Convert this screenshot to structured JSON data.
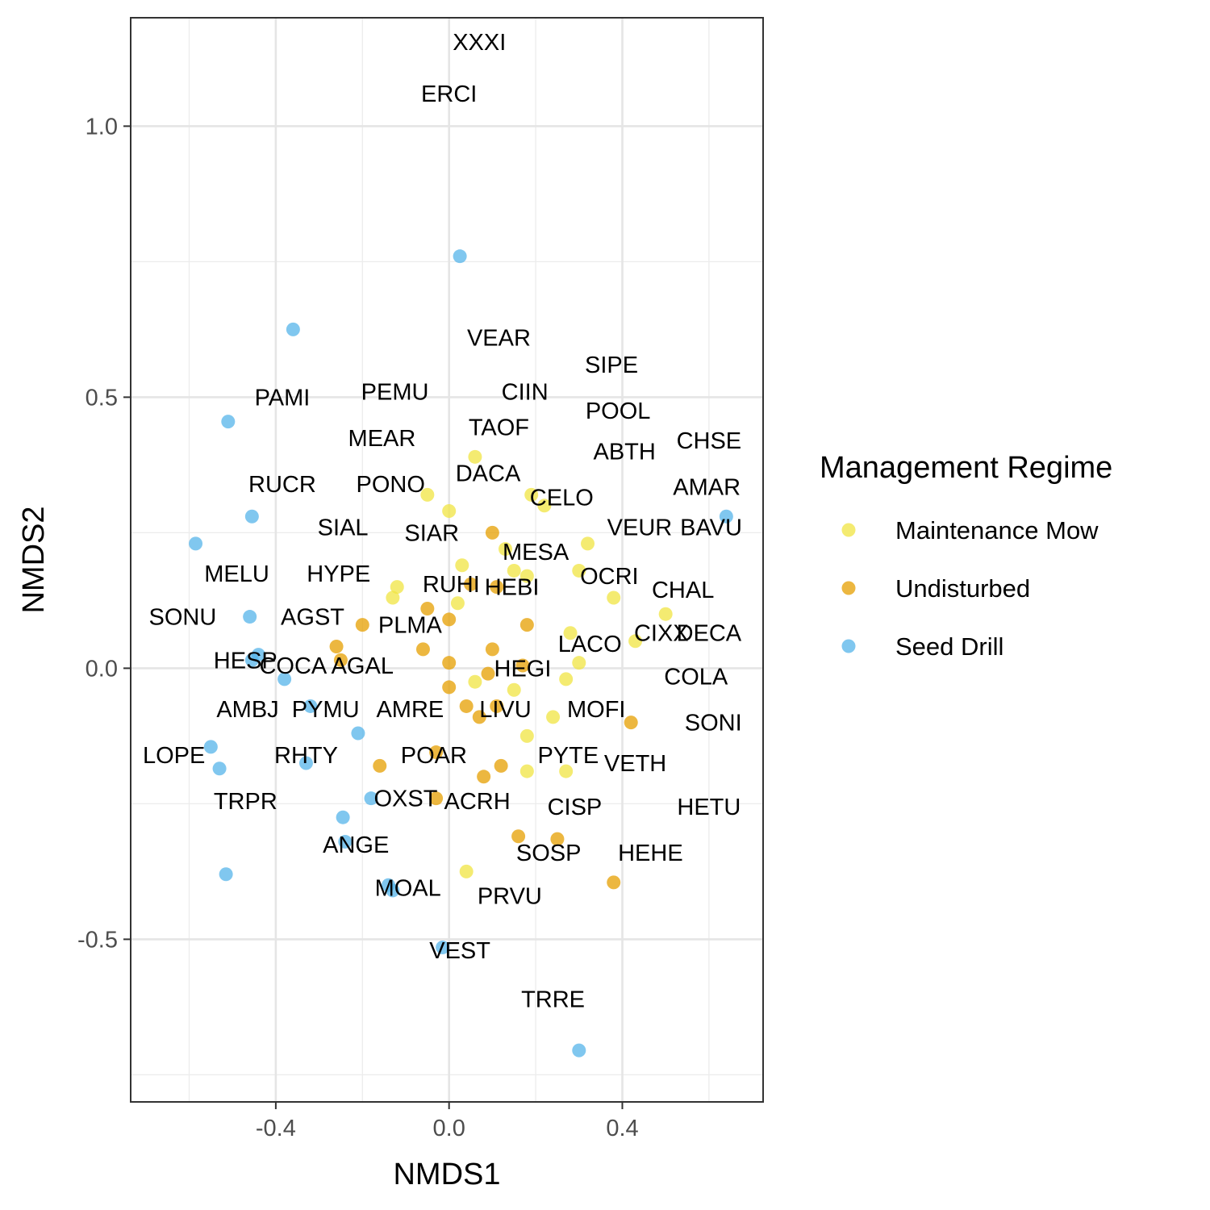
{
  "chart_data": {
    "type": "scatter",
    "xlabel": "NMDS1",
    "ylabel": "NMDS2",
    "xlim": [
      -0.735,
      0.725
    ],
    "ylim": [
      -0.8,
      1.2
    ],
    "x_ticks": [
      -0.4,
      0.0,
      0.4
    ],
    "x_tick_labels": [
      "-0.4",
      "0.0",
      "0.4"
    ],
    "y_ticks": [
      -0.5,
      0.0,
      0.5,
      1.0
    ],
    "y_tick_labels": [
      "-0.5",
      "0.0",
      "0.5",
      "1.0"
    ],
    "grid": true,
    "legend": {
      "title": "Management Regime",
      "position": "right"
    },
    "series": [
      {
        "name": "Maintenance Mow",
        "color": "#F0E442",
        "points": [
          [
            0.06,
            0.39
          ],
          [
            -0.05,
            0.32
          ],
          [
            0.0,
            0.29
          ],
          [
            0.19,
            0.32
          ],
          [
            0.22,
            0.3
          ],
          [
            0.13,
            0.22
          ],
          [
            0.32,
            0.23
          ],
          [
            0.03,
            0.19
          ],
          [
            0.15,
            0.18
          ],
          [
            0.18,
            0.17
          ],
          [
            0.3,
            0.18
          ],
          [
            -0.12,
            0.15
          ],
          [
            -0.13,
            0.13
          ],
          [
            0.02,
            0.12
          ],
          [
            0.38,
            0.13
          ],
          [
            0.5,
            0.1
          ],
          [
            0.28,
            0.065
          ],
          [
            0.43,
            0.05
          ],
          [
            0.3,
            0.01
          ],
          [
            0.06,
            -0.025
          ],
          [
            0.27,
            -0.02
          ],
          [
            0.15,
            -0.04
          ],
          [
            0.24,
            -0.09
          ],
          [
            0.18,
            -0.125
          ],
          [
            0.18,
            -0.19
          ],
          [
            0.27,
            -0.19
          ],
          [
            0.04,
            -0.375
          ]
        ]
      },
      {
        "name": "Undisturbed",
        "color": "#E69F00",
        "points": [
          [
            0.1,
            0.25
          ],
          [
            0.05,
            0.155
          ],
          [
            0.11,
            0.15
          ],
          [
            -0.05,
            0.11
          ],
          [
            0.0,
            0.09
          ],
          [
            0.18,
            0.08
          ],
          [
            -0.2,
            0.08
          ],
          [
            -0.26,
            0.04
          ],
          [
            -0.06,
            0.035
          ],
          [
            0.1,
            0.035
          ],
          [
            0.0,
            0.01
          ],
          [
            -0.25,
            0.015
          ],
          [
            0.17,
            0.005
          ],
          [
            0.09,
            -0.01
          ],
          [
            0.0,
            -0.035
          ],
          [
            0.04,
            -0.07
          ],
          [
            0.11,
            -0.07
          ],
          [
            0.07,
            -0.09
          ],
          [
            0.42,
            -0.1
          ],
          [
            -0.03,
            -0.155
          ],
          [
            -0.16,
            -0.18
          ],
          [
            0.12,
            -0.18
          ],
          [
            0.08,
            -0.2
          ],
          [
            -0.03,
            -0.24
          ],
          [
            0.16,
            -0.31
          ],
          [
            0.25,
            -0.315
          ],
          [
            0.38,
            -0.395
          ]
        ]
      },
      {
        "name": "Seed Drill",
        "color": "#56B4E9",
        "points": [
          [
            0.025,
            0.76
          ],
          [
            -0.36,
            0.625
          ],
          [
            -0.51,
            0.455
          ],
          [
            -0.455,
            0.28
          ],
          [
            0.64,
            0.28
          ],
          [
            -0.585,
            0.23
          ],
          [
            -0.46,
            0.095
          ],
          [
            -0.44,
            0.025
          ],
          [
            -0.455,
            0.015
          ],
          [
            -0.38,
            -0.02
          ],
          [
            -0.32,
            -0.07
          ],
          [
            -0.21,
            -0.12
          ],
          [
            -0.55,
            -0.145
          ],
          [
            -0.53,
            -0.185
          ],
          [
            -0.33,
            -0.175
          ],
          [
            -0.18,
            -0.24
          ],
          [
            -0.245,
            -0.275
          ],
          [
            -0.24,
            -0.32
          ],
          [
            -0.515,
            -0.38
          ],
          [
            -0.14,
            -0.4
          ],
          [
            -0.13,
            -0.41
          ],
          [
            -0.015,
            -0.515
          ],
          [
            0.3,
            -0.705
          ]
        ]
      }
    ],
    "species_labels": [
      {
        "label": "XXXI",
        "x": 0.07,
        "y": 1.155
      },
      {
        "label": "ERCI",
        "x": 0.0,
        "y": 1.06
      },
      {
        "label": "VEAR",
        "x": 0.115,
        "y": 0.61
      },
      {
        "label": "SIPE",
        "x": 0.375,
        "y": 0.56
      },
      {
        "label": "CIIN",
        "x": 0.175,
        "y": 0.51
      },
      {
        "label": "PAMI",
        "x": -0.385,
        "y": 0.5
      },
      {
        "label": "PEMU",
        "x": -0.125,
        "y": 0.51
      },
      {
        "label": "POOL",
        "x": 0.39,
        "y": 0.475
      },
      {
        "label": "TAOF",
        "x": 0.115,
        "y": 0.445
      },
      {
        "label": "MEAR",
        "x": -0.155,
        "y": 0.425
      },
      {
        "label": "CHSE",
        "x": 0.6,
        "y": 0.42
      },
      {
        "label": "ABTH",
        "x": 0.405,
        "y": 0.4
      },
      {
        "label": "DACA",
        "x": 0.09,
        "y": 0.36
      },
      {
        "label": "RUCR",
        "x": -0.385,
        "y": 0.34
      },
      {
        "label": "PONO",
        "x": -0.135,
        "y": 0.34
      },
      {
        "label": "AMAR",
        "x": 0.595,
        "y": 0.335
      },
      {
        "label": "CELO",
        "x": 0.26,
        "y": 0.315
      },
      {
        "label": "SIAL",
        "x": -0.245,
        "y": 0.26
      },
      {
        "label": "SIAR",
        "x": -0.04,
        "y": 0.25
      },
      {
        "label": "VEUR",
        "x": 0.44,
        "y": 0.26
      },
      {
        "label": "BAVU",
        "x": 0.605,
        "y": 0.26
      },
      {
        "label": "MESA",
        "x": 0.2,
        "y": 0.215
      },
      {
        "label": "MELU",
        "x": -0.49,
        "y": 0.175
      },
      {
        "label": "HYPE",
        "x": -0.255,
        "y": 0.175
      },
      {
        "label": "OCRI",
        "x": 0.37,
        "y": 0.17
      },
      {
        "label": "RUHI",
        "x": 0.005,
        "y": 0.155
      },
      {
        "label": "HEBI",
        "x": 0.145,
        "y": 0.15
      },
      {
        "label": "CHAL",
        "x": 0.54,
        "y": 0.145
      },
      {
        "label": "SONU",
        "x": -0.615,
        "y": 0.095
      },
      {
        "label": "AGST",
        "x": -0.315,
        "y": 0.095
      },
      {
        "label": "PLMA",
        "x": -0.09,
        "y": 0.08
      },
      {
        "label": "CIXX",
        "x": 0.49,
        "y": 0.065
      },
      {
        "label": "DECA",
        "x": 0.6,
        "y": 0.065
      },
      {
        "label": "LACO",
        "x": 0.325,
        "y": 0.045
      },
      {
        "label": "HESP",
        "x": -0.47,
        "y": 0.015
      },
      {
        "label": "COCA",
        "x": -0.36,
        "y": 0.005
      },
      {
        "label": "AGAL",
        "x": -0.2,
        "y": 0.005
      },
      {
        "label": "HEGI",
        "x": 0.17,
        "y": 0.0
      },
      {
        "label": "COLA",
        "x": 0.57,
        "y": -0.015
      },
      {
        "label": "AMBJ",
        "x": -0.465,
        "y": -0.075
      },
      {
        "label": "PYMU",
        "x": -0.285,
        "y": -0.075
      },
      {
        "label": "AMRE",
        "x": -0.09,
        "y": -0.075
      },
      {
        "label": "LIVU",
        "x": 0.13,
        "y": -0.075
      },
      {
        "label": "MOFI",
        "x": 0.34,
        "y": -0.075
      },
      {
        "label": "SONI",
        "x": 0.61,
        "y": -0.1
      },
      {
        "label": "LOPE",
        "x": -0.635,
        "y": -0.16
      },
      {
        "label": "RHTY",
        "x": -0.33,
        "y": -0.16
      },
      {
        "label": "POAR",
        "x": -0.035,
        "y": -0.16
      },
      {
        "label": "PYTE",
        "x": 0.275,
        "y": -0.16
      },
      {
        "label": "VETH",
        "x": 0.43,
        "y": -0.175
      },
      {
        "label": "TRPR",
        "x": -0.47,
        "y": -0.245
      },
      {
        "label": "OXST",
        "x": -0.1,
        "y": -0.24
      },
      {
        "label": "ACRH",
        "x": 0.065,
        "y": -0.245
      },
      {
        "label": "CISP",
        "x": 0.29,
        "y": -0.255
      },
      {
        "label": "HETU",
        "x": 0.6,
        "y": -0.255
      },
      {
        "label": "ANGE",
        "x": -0.215,
        "y": -0.325
      },
      {
        "label": "SOSP",
        "x": 0.23,
        "y": -0.34
      },
      {
        "label": "HEHE",
        "x": 0.465,
        "y": -0.34
      },
      {
        "label": "MOAL",
        "x": -0.095,
        "y": -0.405
      },
      {
        "label": "PRVU",
        "x": 0.14,
        "y": -0.42
      },
      {
        "label": "VEST",
        "x": 0.025,
        "y": -0.52
      },
      {
        "label": "TRRE",
        "x": 0.24,
        "y": -0.61
      }
    ]
  }
}
